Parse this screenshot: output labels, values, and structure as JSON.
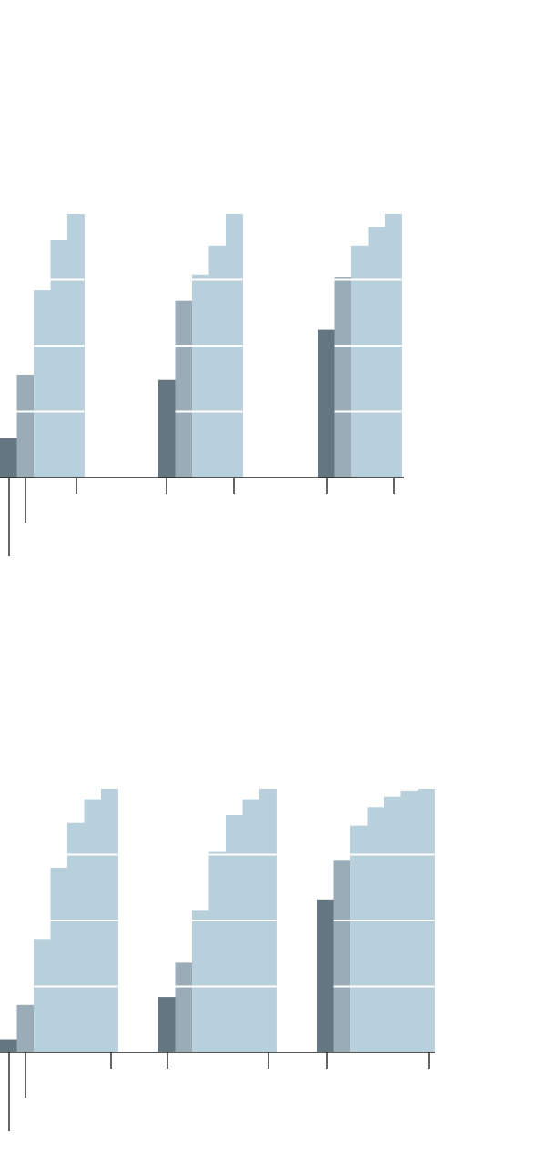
{
  "colors": {
    "background": "#ffffff",
    "axis": "#222222",
    "gridline": "#ffffff",
    "shades": [
      "#647682",
      "#9aacb8",
      "#b8d0dc"
    ]
  },
  "chart_data": [
    {
      "type": "bar",
      "title": "",
      "xlabel": "",
      "ylabel": "",
      "ylim": [
        0,
        100
      ],
      "y_gridlines": [
        25,
        50,
        75
      ],
      "groups": [
        {
          "segments": [
            {
              "shade": 0,
              "value": 15
            },
            {
              "shade": 1,
              "value": 39
            },
            {
              "shade": 2,
              "value": 71
            },
            {
              "shade": 2,
              "value": 90
            },
            {
              "shade": 2,
              "value": 100
            }
          ],
          "ticks": [
            "long",
            "medium",
            "short"
          ]
        },
        {
          "segments": [
            {
              "shade": 0,
              "value": 37
            },
            {
              "shade": 1,
              "value": 67
            },
            {
              "shade": 2,
              "value": 77
            },
            {
              "shade": 2,
              "value": 88
            },
            {
              "shade": 2,
              "value": 100
            }
          ],
          "ticks": [
            "short",
            "short"
          ]
        },
        {
          "segments": [
            {
              "shade": 0,
              "value": 56
            },
            {
              "shade": 1,
              "value": 76
            },
            {
              "shade": 2,
              "value": 88
            },
            {
              "shade": 2,
              "value": 95
            },
            {
              "shade": 2,
              "value": 100
            }
          ],
          "ticks": [
            "short",
            "short"
          ]
        }
      ]
    },
    {
      "type": "bar",
      "title": "",
      "xlabel": "",
      "ylabel": "",
      "ylim": [
        0,
        100
      ],
      "y_gridlines": [
        25,
        50,
        75
      ],
      "groups": [
        {
          "segments": [
            {
              "shade": 0,
              "value": 5
            },
            {
              "shade": 1,
              "value": 18
            },
            {
              "shade": 2,
              "value": 43
            },
            {
              "shade": 2,
              "value": 70
            },
            {
              "shade": 2,
              "value": 87
            },
            {
              "shade": 2,
              "value": 96
            },
            {
              "shade": 2,
              "value": 100
            }
          ],
          "ticks": [
            "long",
            "medium",
            "short"
          ]
        },
        {
          "segments": [
            {
              "shade": 0,
              "value": 21
            },
            {
              "shade": 1,
              "value": 34
            },
            {
              "shade": 2,
              "value": 54
            },
            {
              "shade": 2,
              "value": 76
            },
            {
              "shade": 2,
              "value": 90
            },
            {
              "shade": 2,
              "value": 96
            },
            {
              "shade": 2,
              "value": 100
            }
          ],
          "ticks": [
            "short",
            "short"
          ]
        },
        {
          "segments": [
            {
              "shade": 0,
              "value": 58
            },
            {
              "shade": 1,
              "value": 73
            },
            {
              "shade": 2,
              "value": 86
            },
            {
              "shade": 2,
              "value": 93
            },
            {
              "shade": 2,
              "value": 97
            },
            {
              "shade": 2,
              "value": 99
            },
            {
              "shade": 2,
              "value": 100
            }
          ],
          "ticks": [
            "short",
            "short"
          ]
        }
      ]
    }
  ]
}
